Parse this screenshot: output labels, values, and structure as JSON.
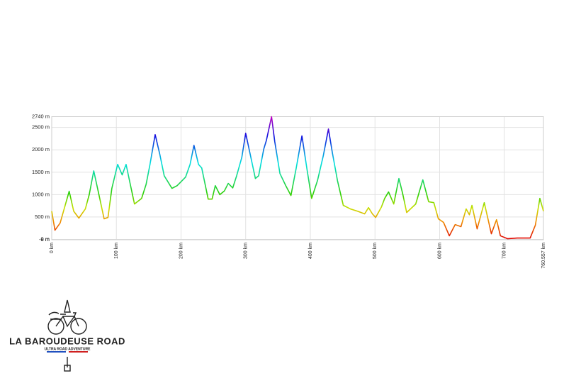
{
  "chart_data": {
    "type": "line",
    "x": [
      0,
      5,
      13,
      27,
      34,
      42,
      52,
      58,
      65,
      73,
      81,
      87,
      93,
      102,
      109,
      115,
      121,
      128,
      139,
      146,
      152,
      160,
      167,
      174,
      186,
      194,
      207,
      214,
      220,
      227,
      232,
      242,
      248,
      253,
      260,
      267,
      273,
      280,
      286,
      294,
      300,
      307,
      315,
      320,
      328,
      332,
      340,
      345,
      353,
      362,
      370,
      378,
      387,
      395,
      402,
      411,
      420,
      428,
      434,
      442,
      451,
      462,
      473,
      484,
      490,
      496,
      501,
      510,
      515,
      521,
      529,
      537,
      543,
      549,
      563,
      574,
      583,
      591,
      598,
      606,
      615,
      624,
      633,
      641,
      646,
      650,
      658,
      669,
      680,
      688,
      694,
      705,
      720,
      740,
      748,
      755,
      760.557
    ],
    "values": [
      630,
      205,
      365,
      1075,
      630,
      475,
      680,
      1000,
      1530,
      1000,
      460,
      490,
      1140,
      1675,
      1440,
      1675,
      1265,
      790,
      915,
      1230,
      1675,
      2340,
      1910,
      1420,
      1140,
      1200,
      1390,
      1675,
      2100,
      1675,
      1595,
      900,
      900,
      1200,
      1000,
      1080,
      1250,
      1150,
      1420,
      1830,
      2370,
      1900,
      1360,
      1420,
      2020,
      2210,
      2740,
      2180,
      1470,
      1200,
      980,
      1580,
      2310,
      1550,
      915,
      1310,
      1865,
      2465,
      1940,
      1310,
      760,
      680,
      630,
      570,
      710,
      570,
      490,
      725,
      915,
      1060,
      790,
      1360,
      1010,
      600,
      790,
      1330,
      840,
      820,
      460,
      380,
      80,
      330,
      285,
      680,
      550,
      760,
      235,
      820,
      125,
      440,
      80,
      15,
      30,
      30,
      315,
      915,
      630
    ],
    "xlim": [
      0,
      760.557
    ],
    "xticks": [
      {
        "value": 0,
        "label": "0 km"
      },
      {
        "value": 100,
        "label": "100 km"
      },
      {
        "value": 200,
        "label": "200 km"
      },
      {
        "value": 300,
        "label": "300 km"
      },
      {
        "value": 400,
        "label": "400 km"
      },
      {
        "value": 500,
        "label": "500 km"
      },
      {
        "value": 600,
        "label": "600 km"
      },
      {
        "value": 700,
        "label": "700 km"
      },
      {
        "value": 760.557,
        "label": "760.557 km"
      }
    ],
    "ylim": [
      -8,
      2740
    ],
    "yticks": [
      {
        "value": -8,
        "label": "-8 m"
      },
      {
        "value": 0,
        "label": "0 m"
      },
      {
        "value": 500,
        "label": "500 m"
      },
      {
        "value": 1000,
        "label": "1000 m"
      },
      {
        "value": 1500,
        "label": "1500 m"
      },
      {
        "value": 2000,
        "label": "2000 m"
      },
      {
        "value": 2500,
        "label": "2500 m"
      },
      {
        "value": 2740,
        "label": "2740 m"
      }
    ],
    "grid": true,
    "colorscale": [
      {
        "value": 0,
        "color": "#e00000"
      },
      {
        "value": 400,
        "color": "#f09000"
      },
      {
        "value": 700,
        "color": "#c8e000"
      },
      {
        "value": 1000,
        "color": "#30d000"
      },
      {
        "value": 1700,
        "color": "#00e0e0"
      },
      {
        "value": 2300,
        "color": "#1010e0"
      },
      {
        "value": 2740,
        "color": "#c000c0"
      }
    ]
  },
  "logo": {
    "title": "LA BAROUDEUSE ROAD",
    "subtitle": "ULTRA ROAD ADVENTURE"
  }
}
